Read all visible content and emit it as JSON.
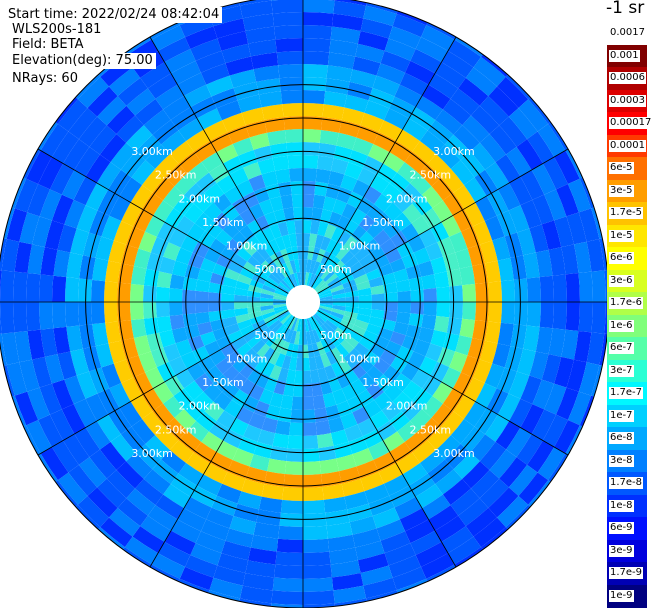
{
  "info": {
    "start_time": "Start time: 2022/02/24 08:42:04",
    "instrument": "WLS200s-181",
    "field": "Field: BETA",
    "elevation": "Elevation(deg): 75.00",
    "nrays": "NRays: 60"
  },
  "legend_title": "-1 sr",
  "legend_labels": [
    "0.0017",
    "0.001",
    "0.0006",
    "0.0003",
    "0.00017",
    "0.0001",
    "6e-5",
    "3e-5",
    "1.7e-5",
    "1e-5",
    "6e-6",
    "3e-6",
    "1.7e-6",
    "1e-6",
    "6e-7",
    "3e-7",
    "1.7e-7",
    "1e-7",
    "6e-8",
    "3e-8",
    "1.7e-8",
    "1e-8",
    "6e-9",
    "3e-9",
    "1.7e-9",
    "1e-9"
  ],
  "legend_colors": [
    "#ffffff",
    "#800000",
    "#b00000",
    "#dd0000",
    "#ff0000",
    "#ff3a00",
    "#ff7000",
    "#ff9d00",
    "#ffc200",
    "#ffe600",
    "#ffff00",
    "#d8ff20",
    "#b0ff48",
    "#80ff7a",
    "#55ffa8",
    "#2affd4",
    "#00f8ff",
    "#00d0ff",
    "#00a8ff",
    "#0080ff",
    "#0058ff",
    "#0030ff",
    "#0010ff",
    "#0000dd",
    "#0000b4",
    "#000080"
  ],
  "range_rings": [
    {
      "label": "500m",
      "range_m": 500
    },
    {
      "label": "1.00km",
      "range_m": 1000
    },
    {
      "label": "1.50km",
      "range_m": 1500
    },
    {
      "label": "2.00km",
      "range_m": 2000
    },
    {
      "label": "2.50km",
      "range_m": 2500
    },
    {
      "label": "3.00km",
      "range_m": 3000
    }
  ]
}
